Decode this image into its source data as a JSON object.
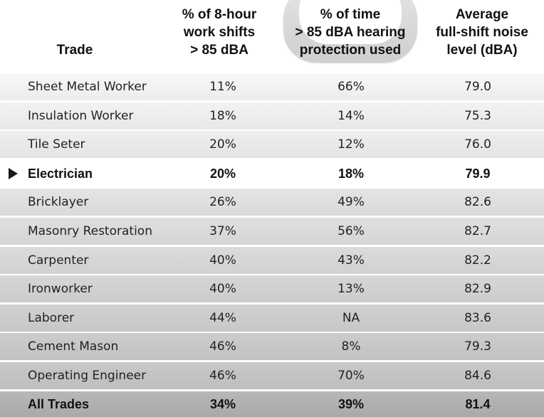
{
  "chart_data": {
    "type": "table",
    "columns": [
      {
        "key": "trade",
        "label_lines": [
          "Trade"
        ]
      },
      {
        "key": "shifts",
        "label_lines": [
          "% of 8-hour",
          "work shifts",
          "> 85 dBA"
        ]
      },
      {
        "key": "protection",
        "label_lines": [
          "% of time",
          "> 85 dBA hearing",
          "protection used"
        ]
      },
      {
        "key": "noise",
        "label_lines": [
          "Average",
          "full-shift noise",
          "level (dBA)"
        ]
      }
    ],
    "rows": [
      {
        "trade": "Sheet Metal Worker",
        "shifts": "11%",
        "protection": "66%",
        "noise": "79.0"
      },
      {
        "trade": "Insulation Worker",
        "shifts": "18%",
        "protection": "14%",
        "noise": "75.3"
      },
      {
        "trade": "Tile Seter",
        "shifts": "20%",
        "protection": "12%",
        "noise": "76.0"
      },
      {
        "trade": "Electrician",
        "shifts": "20%",
        "protection": "18%",
        "noise": "79.9",
        "highlighted": true
      },
      {
        "trade": "Bricklayer",
        "shifts": "26%",
        "protection": "49%",
        "noise": "82.6"
      },
      {
        "trade": "Masonry Restoration",
        "shifts": "37%",
        "protection": "56%",
        "noise": "82.7"
      },
      {
        "trade": "Carpenter",
        "shifts": "40%",
        "protection": "43%",
        "noise": "82.2"
      },
      {
        "trade": "Ironworker",
        "shifts": "40%",
        "protection": "13%",
        "noise": "82.9"
      },
      {
        "trade": "Laborer",
        "shifts": "44%",
        "protection": "NA",
        "noise": "83.6"
      },
      {
        "trade": "Cement Mason",
        "shifts": "46%",
        "protection": "8%",
        "noise": "79.3"
      },
      {
        "trade": "Operating Engineer",
        "shifts": "46%",
        "protection": "70%",
        "noise": "84.6"
      },
      {
        "trade": "All Trades",
        "shifts": "34%",
        "protection": "39%",
        "noise": "81.4",
        "total": true
      }
    ],
    "shifts_values": [
      11,
      18,
      20,
      20,
      26,
      37,
      40,
      40,
      44,
      46,
      46,
      34
    ],
    "protection_values": [
      66,
      14,
      12,
      18,
      49,
      56,
      43,
      13,
      null,
      8,
      70,
      39
    ],
    "noise_values": [
      79.0,
      75.3,
      76.0,
      79.9,
      82.6,
      82.7,
      82.2,
      82.9,
      83.6,
      79.3,
      84.6,
      81.4
    ]
  }
}
